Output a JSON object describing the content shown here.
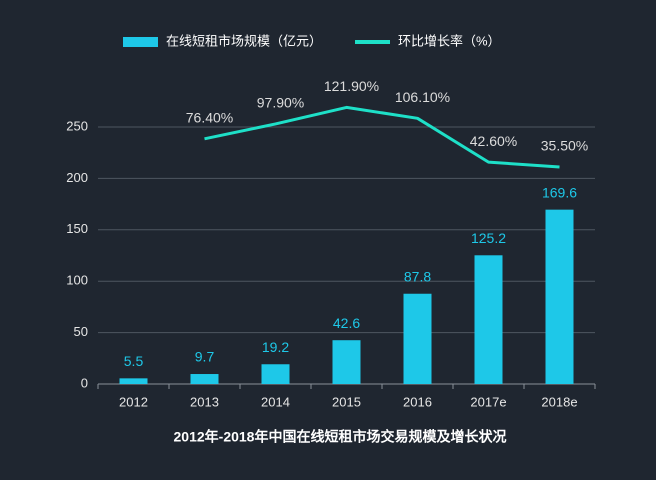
{
  "chart_data": {
    "type": "bar",
    "title": "2012年-2018年中国在线短租市场交易规模及增长状况",
    "categories": [
      "2012",
      "2013",
      "2014",
      "2015",
      "2016",
      "2017e",
      "2018e"
    ],
    "series": [
      {
        "name": "在线短租市场规模（亿元）",
        "type": "bar",
        "color": "#1ec8e8",
        "values": [
          5.5,
          9.7,
          19.2,
          42.6,
          87.8,
          125.2,
          169.6
        ]
      },
      {
        "name": "环比增长率（%）",
        "type": "line",
        "axis": "y2",
        "color": "#1ee0c8",
        "values": [
          null,
          76.4,
          97.9,
          121.9,
          106.1,
          42.6,
          35.5
        ],
        "value_labels": [
          null,
          "76.40%",
          "97.90%",
          "121.90%",
          "106.10%",
          "42.60%",
          "35.50%"
        ]
      }
    ],
    "ylim": [
      0,
      300
    ],
    "yticks": [
      0,
      50,
      100,
      150,
      200,
      250
    ],
    "y2lim": [
      -279,
      168
    ],
    "grid": true,
    "legend": "top"
  }
}
